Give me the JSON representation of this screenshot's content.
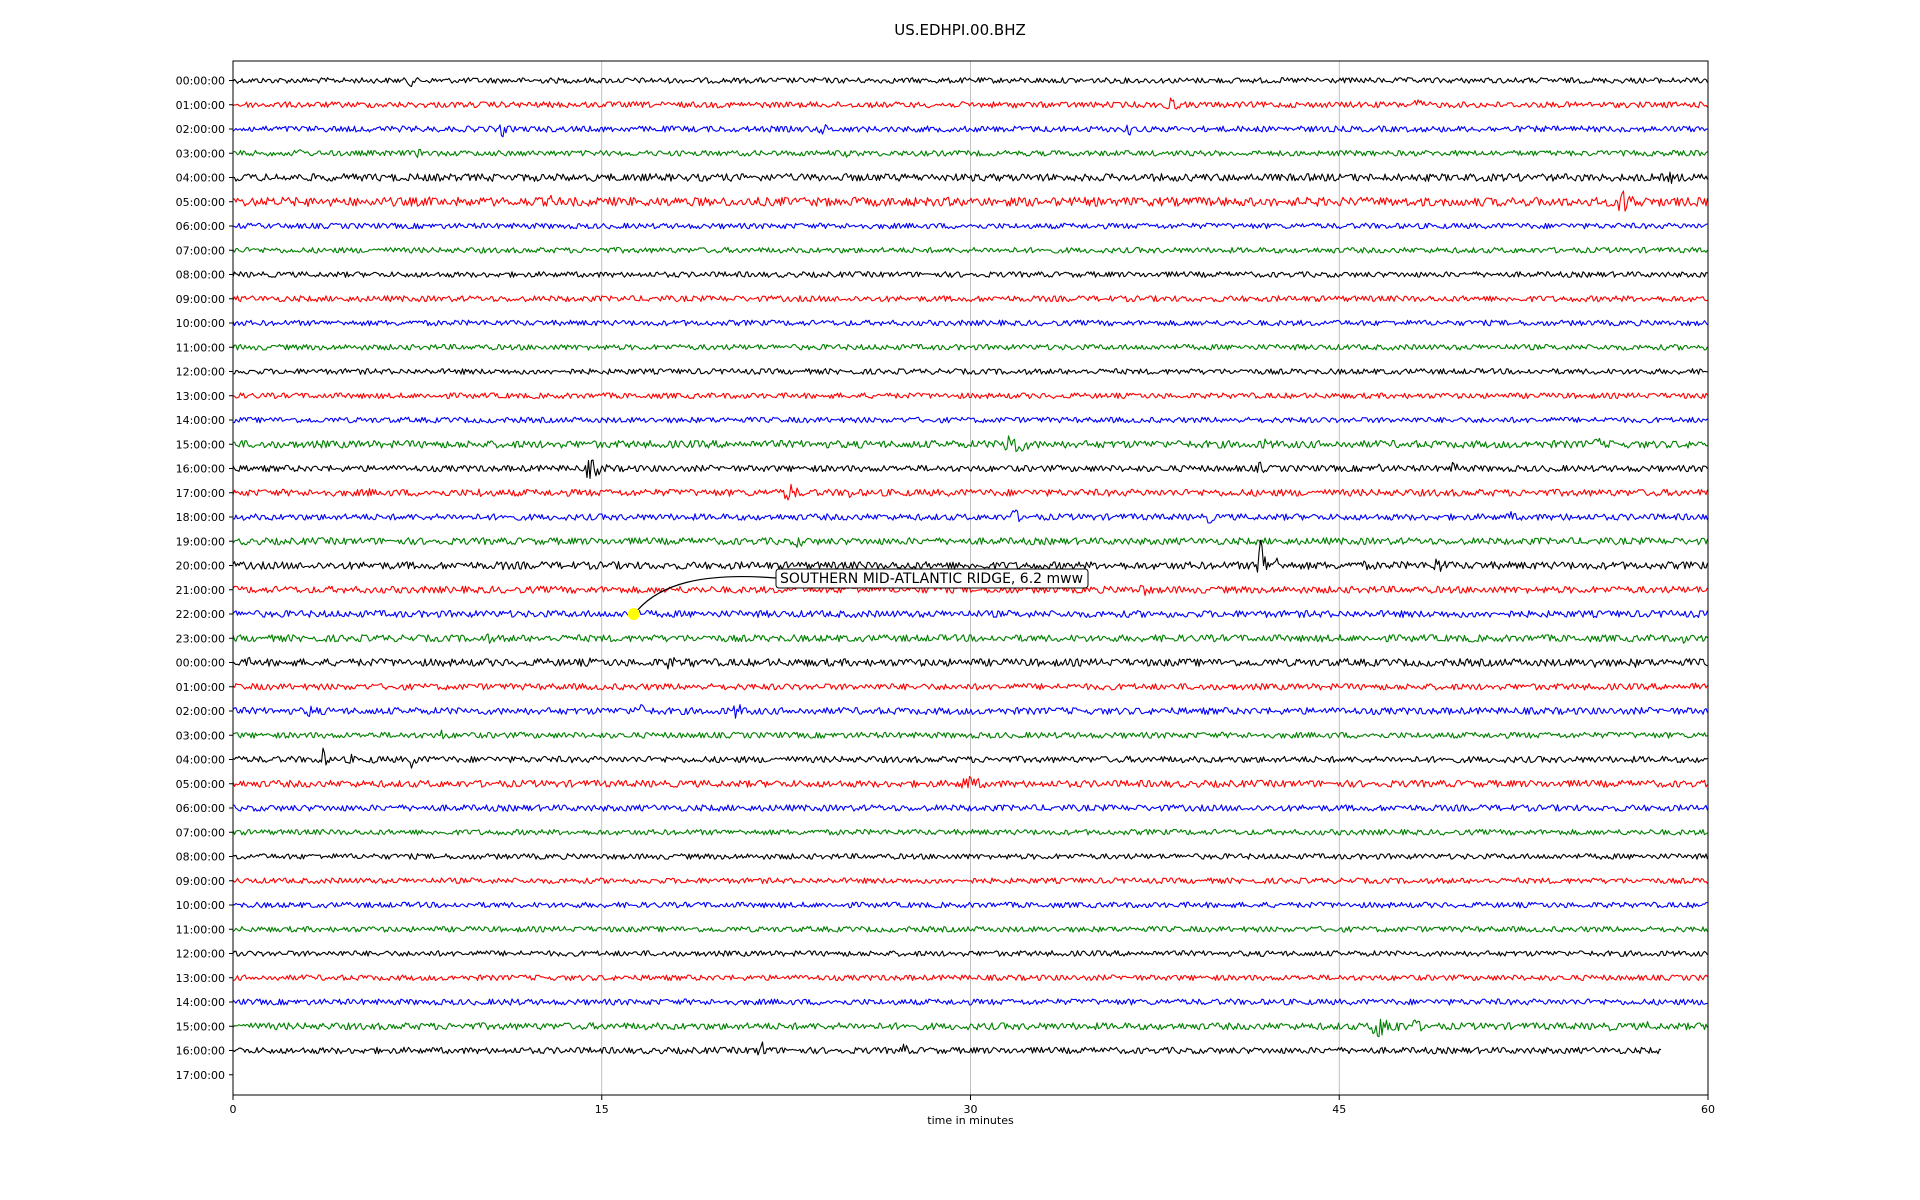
{
  "chart_data": {
    "type": "line",
    "title": "US.EDHPI.00.BHZ",
    "xlabel": "time in minutes",
    "xlim": [
      0,
      60
    ],
    "x_ticks": [
      0,
      15,
      30,
      45,
      60
    ],
    "x_tick_labels": [
      "0",
      "15",
      "30",
      "45",
      "60"
    ],
    "grid": "vertical at 15, 30, 45",
    "trace_colors": [
      "#000000",
      "#ff0000",
      "#0000ff",
      "#008000"
    ],
    "row_labels": [
      "00:00:00",
      "01:00:00",
      "02:00:00",
      "03:00:00",
      "04:00:00",
      "05:00:00",
      "06:00:00",
      "07:00:00",
      "08:00:00",
      "09:00:00",
      "10:00:00",
      "11:00:00",
      "12:00:00",
      "13:00:00",
      "14:00:00",
      "15:00:00",
      "16:00:00",
      "17:00:00",
      "18:00:00",
      "19:00:00",
      "20:00:00",
      "21:00:00",
      "22:00:00",
      "23:00:00",
      "00:00:00",
      "01:00:00",
      "02:00:00",
      "03:00:00",
      "04:00:00",
      "05:00:00",
      "06:00:00",
      "07:00:00",
      "08:00:00",
      "09:00:00",
      "10:00:00",
      "11:00:00",
      "12:00:00",
      "13:00:00",
      "14:00:00",
      "15:00:00",
      "16:00:00",
      "17:00:00"
    ],
    "traces": [
      {
        "row": 0,
        "end_minute": 60,
        "noise": 0.28,
        "bursts": [
          {
            "t": 7.2,
            "amp": 0.9,
            "dur": 0.3
          }
        ]
      },
      {
        "row": 1,
        "end_minute": 60,
        "noise": 0.3,
        "bursts": [
          {
            "t": 31.8,
            "amp": 0.4,
            "dur": 0.8
          },
          {
            "t": 35.5,
            "amp": 0.3,
            "dur": 0.5
          },
          {
            "t": 38.0,
            "amp": 1.2,
            "dur": 0.8
          },
          {
            "t": 48.2,
            "amp": 0.9,
            "dur": 0.4
          }
        ]
      },
      {
        "row": 2,
        "end_minute": 60,
        "noise": 0.3,
        "bursts": [
          {
            "t": 11.0,
            "amp": 1.2,
            "dur": 0.3
          },
          {
            "t": 24.0,
            "amp": 1.0,
            "dur": 0.3
          },
          {
            "t": 33.4,
            "amp": 0.9,
            "dur": 0.3
          },
          {
            "t": 36.5,
            "amp": 1.0,
            "dur": 0.3
          }
        ]
      },
      {
        "row": 3,
        "end_minute": 60,
        "noise": 0.28,
        "bursts": [
          {
            "t": 2.7,
            "amp": 0.8,
            "dur": 0.3
          },
          {
            "t": 7.6,
            "amp": 0.8,
            "dur": 0.3
          },
          {
            "t": 25.0,
            "amp": 0.8,
            "dur": 0.3
          }
        ]
      },
      {
        "row": 4,
        "end_minute": 60,
        "noise": 0.38,
        "bursts": [
          {
            "t": 52.0,
            "amp": 0.5,
            "dur": 1.4
          },
          {
            "t": 58.5,
            "amp": 0.6,
            "dur": 2.0
          }
        ]
      },
      {
        "row": 5,
        "end_minute": 60,
        "noise": 0.45,
        "bursts": [
          {
            "t": 3.0,
            "amp": 0.6,
            "dur": 0.5
          },
          {
            "t": 8.0,
            "amp": 0.5,
            "dur": 1.2
          },
          {
            "t": 13.0,
            "amp": 0.9,
            "dur": 0.5
          },
          {
            "t": 29.2,
            "amp": 0.6,
            "dur": 0.3
          },
          {
            "t": 40.5,
            "amp": 0.5,
            "dur": 0.6
          },
          {
            "t": 56.5,
            "amp": 1.4,
            "dur": 1.6
          }
        ]
      },
      {
        "row": 6,
        "end_minute": 60,
        "noise": 0.28,
        "bursts": []
      },
      {
        "row": 7,
        "end_minute": 60,
        "noise": 0.28,
        "bursts": []
      },
      {
        "row": 8,
        "end_minute": 60,
        "noise": 0.28,
        "bursts": []
      },
      {
        "row": 9,
        "end_minute": 60,
        "noise": 0.3,
        "bursts": []
      },
      {
        "row": 10,
        "end_minute": 60,
        "noise": 0.28,
        "bursts": []
      },
      {
        "row": 11,
        "end_minute": 60,
        "noise": 0.28,
        "bursts": []
      },
      {
        "row": 12,
        "end_minute": 60,
        "noise": 0.28,
        "bursts": []
      },
      {
        "row": 13,
        "end_minute": 60,
        "noise": 0.28,
        "bursts": []
      },
      {
        "row": 14,
        "end_minute": 60,
        "noise": 0.28,
        "bursts": [
          {
            "t": 31.5,
            "amp": 0.4,
            "dur": 0.3
          }
        ]
      },
      {
        "row": 15,
        "end_minute": 60,
        "noise": 0.38,
        "bursts": [
          {
            "t": 31.5,
            "amp": 1.6,
            "dur": 1.5
          },
          {
            "t": 42.0,
            "amp": 0.6,
            "dur": 1.4
          },
          {
            "t": 55.5,
            "amp": 0.7,
            "dur": 1.0
          }
        ]
      },
      {
        "row": 16,
        "end_minute": 60,
        "noise": 0.32,
        "bursts": [
          {
            "t": 14.5,
            "amp": 1.1,
            "dur": 1.5
          },
          {
            "t": 41.8,
            "amp": 1.0,
            "dur": 0.3
          },
          {
            "t": 46.6,
            "amp": 0.8,
            "dur": 0.3
          },
          {
            "t": 49.7,
            "amp": 1.0,
            "dur": 0.4
          }
        ]
      },
      {
        "row": 17,
        "end_minute": 60,
        "noise": 0.35,
        "bursts": [
          {
            "t": 5.5,
            "amp": 0.6,
            "dur": 0.4
          },
          {
            "t": 10.1,
            "amp": 0.7,
            "dur": 0.4
          },
          {
            "t": 22.6,
            "amp": 1.2,
            "dur": 0.8
          },
          {
            "t": 25.0,
            "amp": 0.8,
            "dur": 0.6
          }
        ]
      },
      {
        "row": 18,
        "end_minute": 60,
        "noise": 0.32,
        "bursts": [
          {
            "t": 31.8,
            "amp": 1.1,
            "dur": 0.4
          },
          {
            "t": 39.7,
            "amp": 0.9,
            "dur": 0.4
          },
          {
            "t": 52.0,
            "amp": 0.8,
            "dur": 0.4
          },
          {
            "t": 54.3,
            "amp": 0.7,
            "dur": 0.3
          }
        ]
      },
      {
        "row": 19,
        "end_minute": 60,
        "noise": 0.35,
        "bursts": [
          {
            "t": 2.5,
            "amp": 0.4,
            "dur": 0.8
          },
          {
            "t": 10.5,
            "amp": 0.4,
            "dur": 0.8
          },
          {
            "t": 23.0,
            "amp": 0.8,
            "dur": 0.6
          },
          {
            "t": 48.5,
            "amp": 0.5,
            "dur": 0.8
          }
        ]
      },
      {
        "row": 20,
        "end_minute": 60,
        "noise": 0.38,
        "bursts": [
          {
            "t": 0.7,
            "amp": 0.6,
            "dur": 0.4
          },
          {
            "t": 11.0,
            "amp": 0.6,
            "dur": 0.4
          },
          {
            "t": 41.8,
            "amp": 4.2,
            "dur": 0.3
          },
          {
            "t": 42.4,
            "amp": 1.8,
            "dur": 0.2
          },
          {
            "t": 46.0,
            "amp": 0.5,
            "dur": 2.0
          },
          {
            "t": 49.0,
            "amp": 0.9,
            "dur": 1.2
          }
        ]
      },
      {
        "row": 21,
        "end_minute": 60,
        "noise": 0.35,
        "bursts": [
          {
            "t": 15.5,
            "amp": 0.4,
            "dur": 1.0
          },
          {
            "t": 37.0,
            "amp": 0.7,
            "dur": 1.2
          }
        ]
      },
      {
        "row": 22,
        "end_minute": 60,
        "noise": 0.35,
        "bursts": [
          {
            "t": 42.5,
            "amp": 0.4,
            "dur": 1.5
          },
          {
            "t": 51.0,
            "amp": 0.5,
            "dur": 0.3
          },
          {
            "t": 58.3,
            "amp": 0.6,
            "dur": 0.6
          }
        ]
      },
      {
        "row": 23,
        "end_minute": 60,
        "noise": 0.35,
        "bursts": [
          {
            "t": 10.3,
            "amp": 0.7,
            "dur": 0.9
          },
          {
            "t": 50.3,
            "amp": 0.6,
            "dur": 0.5
          },
          {
            "t": 59.0,
            "amp": 0.6,
            "dur": 0.4
          }
        ]
      },
      {
        "row": 24,
        "end_minute": 60,
        "noise": 0.38,
        "bursts": [
          {
            "t": 0.7,
            "amp": 0.6,
            "dur": 0.5
          },
          {
            "t": 6.2,
            "amp": 0.5,
            "dur": 0.4
          },
          {
            "t": 14.5,
            "amp": 0.5,
            "dur": 0.8
          },
          {
            "t": 17.8,
            "amp": 1.3,
            "dur": 0.3
          },
          {
            "t": 18.6,
            "amp": 1.1,
            "dur": 0.3
          },
          {
            "t": 55.5,
            "amp": 0.8,
            "dur": 0.8
          },
          {
            "t": 57.0,
            "amp": 0.7,
            "dur": 0.3
          }
        ]
      },
      {
        "row": 25,
        "end_minute": 60,
        "noise": 0.32,
        "bursts": [
          {
            "t": 59.5,
            "amp": 0.7,
            "dur": 0.5
          }
        ]
      },
      {
        "row": 26,
        "end_minute": 60,
        "noise": 0.35,
        "bursts": [
          {
            "t": 3.2,
            "amp": 0.8,
            "dur": 0.8
          },
          {
            "t": 16.5,
            "amp": 0.8,
            "dur": 1.5
          },
          {
            "t": 20.5,
            "amp": 0.9,
            "dur": 1.0
          }
        ]
      },
      {
        "row": 27,
        "end_minute": 60,
        "noise": 0.3,
        "bursts": [
          {
            "t": 8.5,
            "amp": 0.7,
            "dur": 0.3
          }
        ]
      },
      {
        "row": 28,
        "end_minute": 60,
        "noise": 0.32,
        "bursts": [
          {
            "t": 3.6,
            "amp": 1.6,
            "dur": 0.4
          },
          {
            "t": 4.8,
            "amp": 0.7,
            "dur": 0.3
          },
          {
            "t": 5.8,
            "amp": 0.8,
            "dur": 0.3
          },
          {
            "t": 7.3,
            "amp": 1.0,
            "dur": 0.6
          },
          {
            "t": 43.4,
            "amp": 0.4,
            "dur": 0.3
          },
          {
            "t": 50.6,
            "amp": 0.6,
            "dur": 0.3
          }
        ]
      },
      {
        "row": 29,
        "end_minute": 60,
        "noise": 0.35,
        "bursts": [
          {
            "t": 5.6,
            "amp": 0.4,
            "dur": 0.5
          },
          {
            "t": 29.8,
            "amp": 1.0,
            "dur": 1.6
          }
        ]
      },
      {
        "row": 30,
        "end_minute": 60,
        "noise": 0.32,
        "bursts": [
          {
            "t": 22.0,
            "amp": 0.6,
            "dur": 0.3
          }
        ]
      },
      {
        "row": 31,
        "end_minute": 60,
        "noise": 0.28,
        "bursts": []
      },
      {
        "row": 32,
        "end_minute": 60,
        "noise": 0.28,
        "bursts": []
      },
      {
        "row": 33,
        "end_minute": 60,
        "noise": 0.28,
        "bursts": []
      },
      {
        "row": 34,
        "end_minute": 60,
        "noise": 0.28,
        "bursts": []
      },
      {
        "row": 35,
        "end_minute": 60,
        "noise": 0.28,
        "bursts": []
      },
      {
        "row": 36,
        "end_minute": 60,
        "noise": 0.28,
        "bursts": []
      },
      {
        "row": 37,
        "end_minute": 60,
        "noise": 0.28,
        "bursts": [
          {
            "t": 49.0,
            "amp": 0.4,
            "dur": 0.6
          }
        ]
      },
      {
        "row": 38,
        "end_minute": 60,
        "noise": 0.3,
        "bursts": [
          {
            "t": 11.3,
            "amp": 0.5,
            "dur": 0.5
          }
        ]
      },
      {
        "row": 39,
        "end_minute": 60,
        "noise": 0.35,
        "bursts": [
          {
            "t": 46.5,
            "amp": 1.4,
            "dur": 2.0
          },
          {
            "t": 48.0,
            "amp": 0.9,
            "dur": 1.0
          },
          {
            "t": 56.0,
            "amp": 0.6,
            "dur": 0.5
          },
          {
            "t": 57.5,
            "amp": 0.6,
            "dur": 0.5
          }
        ]
      },
      {
        "row": 40,
        "end_minute": 58.1,
        "noise": 0.32,
        "bursts": [
          {
            "t": 19.5,
            "amp": 0.6,
            "dur": 0.3
          },
          {
            "t": 21.5,
            "amp": 1.0,
            "dur": 0.8
          },
          {
            "t": 27.3,
            "amp": 0.7,
            "dur": 0.8
          },
          {
            "t": 31.8,
            "amp": 0.4,
            "dur": 0.6
          }
        ]
      }
    ],
    "event_marker": {
      "row": 22,
      "minute": 16.3,
      "color": "#ffff00"
    },
    "annotation": "SOUTHERN MID-ATLANTIC RIDGE, 6.2 mww"
  }
}
